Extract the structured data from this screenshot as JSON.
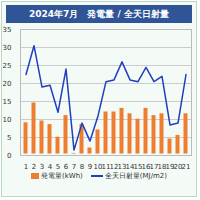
{
  "chart_data": {
    "type": "bar",
    "title": "2024年7月　発電量 / 全天日射量",
    "categories": [
      "1",
      "2",
      "3",
      "4",
      "5",
      "6",
      "7",
      "8",
      "9",
      "10",
      "11",
      "12",
      "13",
      "14",
      "15",
      "16",
      "17",
      "18",
      "19",
      "20",
      "21"
    ],
    "series": [
      {
        "name": "発電量(kWh)",
        "type": "bar",
        "color": "#ed7d31",
        "values": [
          9.5,
          15,
          10,
          9,
          5.5,
          11.5,
          1,
          9,
          2.5,
          7.5,
          12.5,
          12.5,
          13.5,
          12,
          10.5,
          13.5,
          11.5,
          12,
          5,
          6,
          12
        ]
      },
      {
        "name": "全天日射量(MJ/m2)",
        "type": "line",
        "color": "#1f3fbf",
        "values": [
          22.5,
          30.5,
          19,
          19.5,
          12,
          24,
          1.5,
          9,
          4,
          11,
          20.5,
          21,
          26,
          21,
          20.5,
          24.5,
          20.5,
          22,
          8.5,
          9,
          22.5
        ]
      }
    ],
    "ylim": [
      0,
      35
    ],
    "yticks": [
      0,
      5,
      10,
      15,
      20,
      25,
      30,
      35
    ],
    "grid": true,
    "legend": "bottom"
  }
}
